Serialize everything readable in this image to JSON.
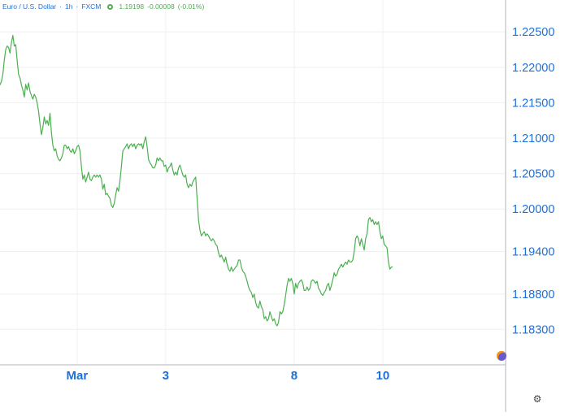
{
  "header": {
    "instrument": "Euro / U.S. Dollar",
    "interval": "1h",
    "source": "FXCM",
    "last": "1.19198",
    "change": "-0.00008",
    "change_pct": "(-0.01%)"
  },
  "colors": {
    "line": "#4caf50",
    "axis_text": "#1e6fd9",
    "grid": "#eef0f3"
  },
  "icons": {
    "gear": "gear-icon",
    "corner": "tradingview-logo-icon"
  },
  "chart_data": {
    "type": "line",
    "title": "",
    "xlabel": "",
    "ylabel": "",
    "x_tick_labels": [
      {
        "label": "Mar",
        "x": 27
      },
      {
        "label": "3",
        "x": 58
      },
      {
        "label": "8",
        "x": 103
      },
      {
        "label": "10",
        "x": 134
      }
    ],
    "y_tick_labels": [
      "1.22500",
      "1.22000",
      "1.21500",
      "1.21000",
      "1.20500",
      "1.20000",
      "1.19400",
      "1.18800",
      "1.18300"
    ],
    "y_ticks": [
      1.225,
      1.22,
      1.215,
      1.21,
      1.205,
      1.2,
      1.194,
      1.188,
      1.183
    ],
    "ylim": [
      1.178,
      1.2295
    ],
    "xlim": [
      0,
      177
    ],
    "grid": true,
    "series": [
      {
        "points": [
          [
            0,
            1.2175
          ],
          [
            0.5,
            1.218
          ],
          [
            1,
            1.219
          ],
          [
            1.5,
            1.221
          ],
          [
            2,
            1.2225
          ],
          [
            2.5,
            1.223
          ],
          [
            3,
            1.2228
          ],
          [
            3.5,
            1.222
          ],
          [
            4,
            1.2235
          ],
          [
            4.5,
            1.2245
          ],
          [
            5,
            1.223
          ],
          [
            5.5,
            1.2232
          ],
          [
            6,
            1.221
          ],
          [
            6.5,
            1.219
          ],
          [
            7,
            1.2185
          ],
          [
            7.5,
            1.2175
          ],
          [
            8,
            1.2168
          ],
          [
            8.5,
            1.2158
          ],
          [
            9,
            1.2176
          ],
          [
            9.5,
            1.2168
          ],
          [
            10,
            1.2178
          ],
          [
            10.5,
            1.2166
          ],
          [
            11,
            1.216
          ],
          [
            11.5,
            1.2155
          ],
          [
            12,
            1.2162
          ],
          [
            12.5,
            1.2158
          ],
          [
            13,
            1.215
          ],
          [
            13.5,
            1.2138
          ],
          [
            14,
            1.212
          ],
          [
            14.5,
            1.2105
          ],
          [
            15,
            1.2115
          ],
          [
            15.5,
            1.213
          ],
          [
            16,
            1.212
          ],
          [
            16.5,
            1.2125
          ],
          [
            17,
            1.2118
          ],
          [
            17.5,
            1.2135
          ],
          [
            18,
            1.2108
          ],
          [
            18.5,
            1.209
          ],
          [
            19,
            1.2082
          ],
          [
            19.5,
            1.2085
          ],
          [
            20,
            1.2075
          ],
          [
            20.5,
            1.207
          ],
          [
            21,
            1.2068
          ],
          [
            21.5,
            1.2072
          ],
          [
            22,
            1.2078
          ],
          [
            22.5,
            1.209
          ],
          [
            23,
            1.209
          ],
          [
            23.5,
            1.2085
          ],
          [
            24,
            1.2088
          ],
          [
            24.5,
            1.2082
          ],
          [
            25,
            1.208
          ],
          [
            25.5,
            1.2085
          ],
          [
            26,
            1.2078
          ],
          [
            26.5,
            1.2082
          ],
          [
            27,
            1.2088
          ],
          [
            27.5,
            1.209
          ],
          [
            28,
            1.2082
          ],
          [
            28.5,
            1.206
          ],
          [
            29,
            1.2042
          ],
          [
            29.5,
            1.2048
          ],
          [
            30,
            1.2038
          ],
          [
            30.5,
            1.2045
          ],
          [
            31,
            1.2052
          ],
          [
            31.5,
            1.2042
          ],
          [
            32,
            1.204
          ],
          [
            32.5,
            1.2045
          ],
          [
            33,
            1.2048
          ],
          [
            33.5,
            1.2045
          ],
          [
            34,
            1.2048
          ],
          [
            34.5,
            1.2045
          ],
          [
            35,
            1.2048
          ],
          [
            35.5,
            1.2042
          ],
          [
            36,
            1.2028
          ],
          [
            36.5,
            1.2035
          ],
          [
            37,
            1.202
          ],
          [
            37.5,
            1.2022
          ],
          [
            38,
            1.2018
          ],
          [
            38.5,
            1.2015
          ],
          [
            39,
            1.2005
          ],
          [
            39.5,
            1.2002
          ],
          [
            40,
            1.2008
          ],
          [
            40.5,
            1.202
          ],
          [
            41,
            1.203
          ],
          [
            41.5,
            1.2025
          ],
          [
            42,
            1.204
          ],
          [
            42.5,
            1.206
          ],
          [
            43,
            1.2082
          ],
          [
            43.5,
            1.2085
          ],
          [
            44,
            1.2088
          ],
          [
            44.5,
            1.2092
          ],
          [
            45,
            1.2085
          ],
          [
            45.5,
            1.209
          ],
          [
            46,
            1.2092
          ],
          [
            46.5,
            1.2088
          ],
          [
            47,
            1.2092
          ],
          [
            47.5,
            1.2085
          ],
          [
            48,
            1.209
          ],
          [
            48.5,
            1.2092
          ],
          [
            49,
            1.209
          ],
          [
            49.5,
            1.2092
          ],
          [
            50,
            1.2085
          ],
          [
            50.5,
            1.2095
          ],
          [
            51,
            1.2102
          ],
          [
            51.5,
            1.2088
          ],
          [
            52,
            1.207
          ],
          [
            52.5,
            1.2065
          ],
          [
            53,
            1.2062
          ],
          [
            53.5,
            1.2058
          ],
          [
            54,
            1.2058
          ],
          [
            54.5,
            1.2062
          ],
          [
            55,
            1.2072
          ],
          [
            55.5,
            1.2068
          ],
          [
            56,
            1.2072
          ],
          [
            56.5,
            1.2068
          ],
          [
            57,
            1.2068
          ],
          [
            57.5,
            1.206
          ],
          [
            58,
            1.2062
          ],
          [
            58.5,
            1.2052
          ],
          [
            59,
            1.2058
          ],
          [
            59.5,
            1.206
          ],
          [
            60,
            1.2065
          ],
          [
            60.5,
            1.2055
          ],
          [
            61,
            1.2048
          ],
          [
            61.5,
            1.2052
          ],
          [
            62,
            1.2048
          ],
          [
            62.5,
            1.2058
          ],
          [
            63,
            1.2062
          ],
          [
            63.5,
            1.2055
          ],
          [
            64,
            1.2048
          ],
          [
            64.5,
            1.2045
          ],
          [
            65,
            1.2048
          ],
          [
            65.5,
            1.2035
          ],
          [
            66,
            1.203
          ],
          [
            66.5,
            1.2035
          ],
          [
            67,
            1.2032
          ],
          [
            67.5,
            1.2038
          ],
          [
            68,
            1.2042
          ],
          [
            68.5,
            1.2045
          ],
          [
            69,
            1.2015
          ],
          [
            69.5,
            1.1985
          ],
          [
            70,
            1.197
          ],
          [
            70.5,
            1.1962
          ],
          [
            71,
            1.1965
          ],
          [
            71.5,
            1.1968
          ],
          [
            72,
            1.1962
          ],
          [
            72.5,
            1.1965
          ],
          [
            73,
            1.1962
          ],
          [
            73.5,
            1.1958
          ],
          [
            74,
            1.1955
          ],
          [
            74.5,
            1.1958
          ],
          [
            75,
            1.1955
          ],
          [
            75.5,
            1.195
          ],
          [
            76,
            1.1948
          ],
          [
            76.5,
            1.1938
          ],
          [
            77,
            1.1932
          ],
          [
            77.5,
            1.1935
          ],
          [
            78,
            1.193
          ],
          [
            78.5,
            1.1925
          ],
          [
            79,
            1.1932
          ],
          [
            79.5,
            1.1922
          ],
          [
            80,
            1.1915
          ],
          [
            80.5,
            1.1912
          ],
          [
            81,
            1.1918
          ],
          [
            81.5,
            1.1912
          ],
          [
            82,
            1.1915
          ],
          [
            82.5,
            1.1918
          ],
          [
            83,
            1.192
          ],
          [
            83.5,
            1.1928
          ],
          [
            84,
            1.1928
          ],
          [
            84.5,
            1.1918
          ],
          [
            85,
            1.1912
          ],
          [
            85.5,
            1.191
          ],
          [
            86,
            1.1905
          ],
          [
            86.5,
            1.1898
          ],
          [
            87,
            1.189
          ],
          [
            87.5,
            1.1885
          ],
          [
            88,
            1.1882
          ],
          [
            88.5,
            1.1875
          ],
          [
            89,
            1.188
          ],
          [
            89.5,
            1.1868
          ],
          [
            90,
            1.1862
          ],
          [
            90.5,
            1.186
          ],
          [
            91,
            1.187
          ],
          [
            91.5,
            1.1862
          ],
          [
            92,
            1.1858
          ],
          [
            92.5,
            1.1845
          ],
          [
            93,
            1.1848
          ],
          [
            93.5,
            1.1842
          ],
          [
            94,
            1.1845
          ],
          [
            94.5,
            1.1855
          ],
          [
            95,
            1.1848
          ],
          [
            95.5,
            1.1842
          ],
          [
            96,
            1.1845
          ],
          [
            96.5,
            1.1838
          ],
          [
            97,
            1.1835
          ],
          [
            97.5,
            1.184
          ],
          [
            98,
            1.1855
          ],
          [
            98.5,
            1.1852
          ],
          [
            99,
            1.1855
          ],
          [
            99.5,
            1.1865
          ],
          [
            100,
            1.1878
          ],
          [
            100.5,
            1.1892
          ],
          [
            101,
            1.1902
          ],
          [
            101.5,
            1.1898
          ],
          [
            102,
            1.1902
          ],
          [
            102.5,
            1.1895
          ],
          [
            103,
            1.188
          ],
          [
            103.5,
            1.1895
          ],
          [
            104,
            1.1888
          ],
          [
            104.5,
            1.1895
          ],
          [
            105,
            1.1898
          ],
          [
            105.5,
            1.19
          ],
          [
            106,
            1.1895
          ],
          [
            106.5,
            1.1885
          ],
          [
            107,
            1.1885
          ],
          [
            107.5,
            1.189
          ],
          [
            108,
            1.1885
          ],
          [
            108.5,
            1.1888
          ],
          [
            109,
            1.1898
          ],
          [
            109.5,
            1.19
          ],
          [
            110,
            1.1898
          ],
          [
            110.5,
            1.1895
          ],
          [
            111,
            1.1898
          ],
          [
            111.5,
            1.1888
          ],
          [
            112,
            1.1885
          ],
          [
            112.5,
            1.188
          ],
          [
            113,
            1.1878
          ],
          [
            113.5,
            1.1882
          ],
          [
            114,
            1.1885
          ],
          [
            114.5,
            1.1892
          ],
          [
            115,
            1.1895
          ],
          [
            115.5,
            1.1885
          ],
          [
            116,
            1.1892
          ],
          [
            116.5,
            1.19
          ],
          [
            117,
            1.191
          ],
          [
            117.5,
            1.1905
          ],
          [
            118,
            1.1908
          ],
          [
            118.5,
            1.1915
          ],
          [
            119,
            1.1918
          ],
          [
            119.5,
            1.1922
          ],
          [
            120,
            1.1918
          ],
          [
            120.5,
            1.1922
          ],
          [
            121,
            1.1925
          ],
          [
            121.5,
            1.1922
          ],
          [
            122,
            1.1928
          ],
          [
            122.5,
            1.1925
          ],
          [
            123,
            1.1925
          ],
          [
            123.5,
            1.1928
          ],
          [
            124,
            1.194
          ],
          [
            124.5,
            1.1958
          ],
          [
            125,
            1.1962
          ],
          [
            125.5,
            1.1958
          ],
          [
            126,
            1.1948
          ],
          [
            126.5,
            1.1958
          ],
          [
            127,
            1.195
          ],
          [
            127.5,
            1.1942
          ],
          [
            128,
            1.1958
          ],
          [
            128.5,
            1.1965
          ],
          [
            129,
            1.1985
          ],
          [
            129.5,
            1.1988
          ],
          [
            130,
            1.1982
          ],
          [
            130.5,
            1.1985
          ],
          [
            131,
            1.1978
          ],
          [
            131.5,
            1.1982
          ],
          [
            132,
            1.1978
          ],
          [
            132.5,
            1.1982
          ],
          [
            133,
            1.1968
          ],
          [
            133.5,
            1.1958
          ],
          [
            134,
            1.1962
          ],
          [
            134.5,
            1.195
          ],
          [
            135,
            1.1948
          ],
          [
            135.5,
            1.1945
          ],
          [
            136,
            1.1925
          ],
          [
            136.5,
            1.1915
          ],
          [
            137,
            1.1918
          ],
          [
            137.5,
            1.1918
          ]
        ]
      }
    ]
  }
}
